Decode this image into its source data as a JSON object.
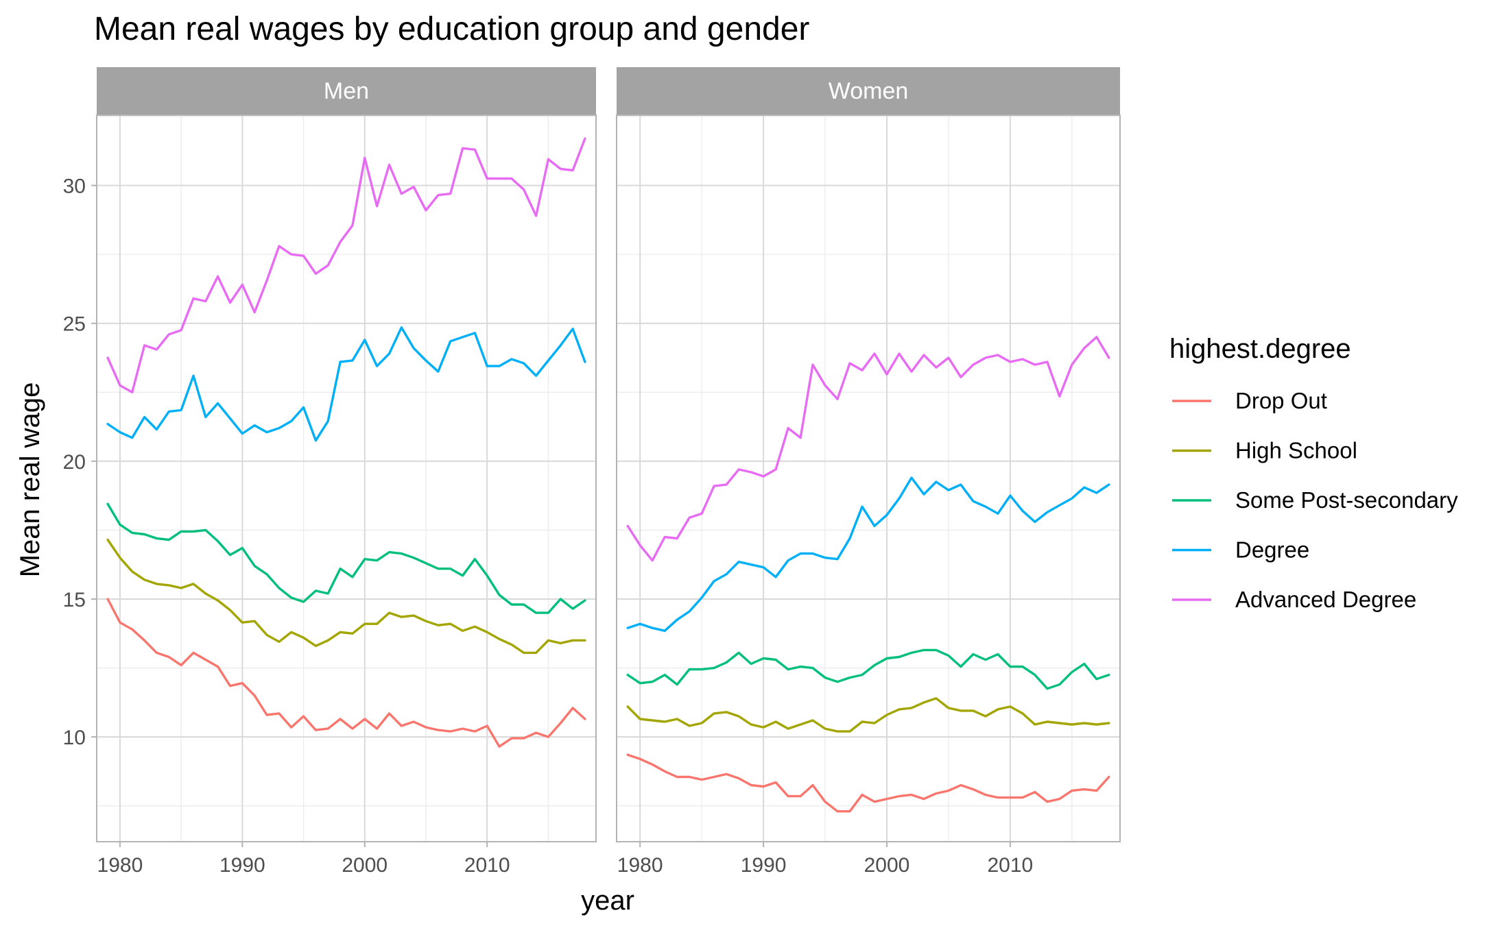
{
  "chart_data": {
    "type": "line",
    "title": "Mean real wages by education group and gender",
    "xlabel": "year",
    "ylabel": "Mean real wage",
    "xlim": [
      1978.1,
      2018.9
    ],
    "ylim": [
      6.2,
      32.55
    ],
    "x_ticks": [
      1980,
      1990,
      2000,
      2010
    ],
    "y_ticks": [
      10,
      15,
      20,
      25,
      30
    ],
    "grid": true,
    "legend": {
      "title": "highest.degree",
      "position": "right"
    },
    "panels": [
      "Men",
      "Women"
    ],
    "x": [
      1979,
      1980,
      1981,
      1982,
      1983,
      1984,
      1985,
      1986,
      1987,
      1988,
      1989,
      1990,
      1991,
      1992,
      1993,
      1994,
      1995,
      1996,
      1997,
      1998,
      1999,
      2000,
      2001,
      2002,
      2003,
      2004,
      2005,
      2006,
      2007,
      2008,
      2009,
      2010,
      2011,
      2012,
      2013,
      2014,
      2015,
      2016,
      2017,
      2018
    ],
    "series": [
      {
        "name": "Drop Out",
        "color": "#F8766D",
        "values": {
          "Men": [
            15.0,
            14.15,
            13.9,
            13.5,
            13.05,
            12.9,
            12.6,
            13.05,
            12.8,
            12.55,
            11.85,
            11.95,
            11.5,
            10.8,
            10.85,
            10.35,
            10.75,
            10.25,
            10.3,
            10.65,
            10.3,
            10.65,
            10.3,
            10.85,
            10.4,
            10.55,
            10.35,
            10.25,
            10.2,
            10.3,
            10.2,
            10.4,
            9.65,
            9.95,
            9.95,
            10.15,
            10.0,
            10.5,
            11.05,
            10.65
          ],
          "Women": [
            9.35,
            9.2,
            9.0,
            8.75,
            8.55,
            8.55,
            8.45,
            8.55,
            8.65,
            8.5,
            8.25,
            8.2,
            8.35,
            7.85,
            7.85,
            8.25,
            7.65,
            7.3,
            7.3,
            7.9,
            7.65,
            7.75,
            7.85,
            7.9,
            7.75,
            7.95,
            8.05,
            8.25,
            8.1,
            7.9,
            7.8,
            7.8,
            7.8,
            8.0,
            7.65,
            7.75,
            8.05,
            8.1,
            8.05,
            8.55
          ]
        }
      },
      {
        "name": "High School",
        "color": "#A3A500",
        "values": {
          "Men": [
            17.15,
            16.5,
            16.0,
            15.7,
            15.55,
            15.5,
            15.4,
            15.55,
            15.2,
            14.95,
            14.6,
            14.15,
            14.2,
            13.7,
            13.45,
            13.8,
            13.6,
            13.3,
            13.5,
            13.8,
            13.75,
            14.1,
            14.1,
            14.5,
            14.35,
            14.4,
            14.2,
            14.05,
            14.1,
            13.85,
            14.0,
            13.8,
            13.55,
            13.35,
            13.05,
            13.05,
            13.5,
            13.4,
            13.5,
            13.5
          ],
          "Women": [
            11.1,
            10.65,
            10.6,
            10.55,
            10.65,
            10.4,
            10.5,
            10.85,
            10.9,
            10.75,
            10.45,
            10.35,
            10.55,
            10.3,
            10.45,
            10.6,
            10.3,
            10.2,
            10.2,
            10.55,
            10.5,
            10.8,
            11.0,
            11.05,
            11.25,
            11.4,
            11.05,
            10.95,
            10.95,
            10.75,
            11.0,
            11.1,
            10.85,
            10.45,
            10.55,
            10.5,
            10.45,
            10.5,
            10.45,
            10.5
          ]
        }
      },
      {
        "name": "Some Post-secondary",
        "color": "#00BF7D",
        "values": {
          "Men": [
            18.45,
            17.7,
            17.4,
            17.35,
            17.2,
            17.15,
            17.45,
            17.45,
            17.5,
            17.1,
            16.6,
            16.85,
            16.2,
            15.9,
            15.4,
            15.05,
            14.9,
            15.3,
            15.2,
            16.1,
            15.8,
            16.45,
            16.4,
            16.7,
            16.65,
            16.5,
            16.3,
            16.1,
            16.1,
            15.85,
            16.45,
            15.85,
            15.15,
            14.8,
            14.8,
            14.5,
            14.5,
            15.0,
            14.65,
            14.95
          ],
          "Women": [
            12.25,
            11.95,
            12.0,
            12.25,
            11.9,
            12.45,
            12.45,
            12.5,
            12.7,
            13.05,
            12.65,
            12.85,
            12.8,
            12.45,
            12.55,
            12.5,
            12.15,
            12.0,
            12.15,
            12.25,
            12.6,
            12.85,
            12.9,
            13.05,
            13.15,
            13.15,
            12.95,
            12.55,
            13.0,
            12.8,
            13.0,
            12.55,
            12.55,
            12.25,
            11.75,
            11.9,
            12.35,
            12.65,
            12.1,
            12.25
          ]
        }
      },
      {
        "name": "Degree",
        "color": "#00B0F6",
        "values": {
          "Men": [
            21.35,
            21.05,
            20.85,
            21.6,
            21.15,
            21.8,
            21.85,
            23.1,
            21.6,
            22.1,
            21.55,
            21.0,
            21.3,
            21.05,
            21.2,
            21.45,
            21.95,
            20.75,
            21.45,
            23.6,
            23.65,
            24.4,
            23.45,
            23.9,
            24.85,
            24.1,
            23.65,
            23.25,
            24.35,
            24.5,
            24.65,
            23.45,
            23.45,
            23.7,
            23.55,
            23.1,
            23.65,
            24.2,
            24.8,
            23.6
          ],
          "Women": [
            13.95,
            14.1,
            13.95,
            13.85,
            14.25,
            14.55,
            15.05,
            15.65,
            15.9,
            16.35,
            16.25,
            16.15,
            15.8,
            16.4,
            16.65,
            16.65,
            16.5,
            16.45,
            17.2,
            18.35,
            17.65,
            18.05,
            18.65,
            19.4,
            18.8,
            19.25,
            18.95,
            19.15,
            18.55,
            18.35,
            18.1,
            18.75,
            18.2,
            17.8,
            18.15,
            18.4,
            18.65,
            19.05,
            18.85,
            19.15
          ]
        }
      },
      {
        "name": "Advanced Degree",
        "color": "#E76BF3",
        "values": {
          "Men": [
            23.75,
            22.75,
            22.5,
            24.2,
            24.05,
            24.6,
            24.75,
            25.9,
            25.8,
            26.7,
            25.75,
            26.4,
            25.4,
            26.55,
            27.8,
            27.5,
            27.45,
            26.8,
            27.1,
            27.95,
            28.55,
            31.0,
            29.25,
            30.75,
            29.7,
            29.95,
            29.1,
            29.65,
            29.7,
            31.35,
            31.3,
            30.25,
            30.25,
            30.25,
            29.85,
            28.9,
            30.95,
            30.6,
            30.55,
            31.7
          ],
          "Women": [
            17.65,
            16.95,
            16.4,
            17.25,
            17.2,
            17.95,
            18.1,
            19.1,
            19.15,
            19.7,
            19.6,
            19.45,
            19.7,
            21.2,
            20.85,
            23.5,
            22.75,
            22.25,
            23.55,
            23.3,
            23.9,
            23.15,
            23.9,
            23.25,
            23.85,
            23.4,
            23.75,
            23.05,
            23.5,
            23.75,
            23.85,
            23.6,
            23.7,
            23.5,
            23.6,
            22.35,
            23.5,
            24.1,
            24.5,
            23.75
          ]
        }
      }
    ]
  }
}
